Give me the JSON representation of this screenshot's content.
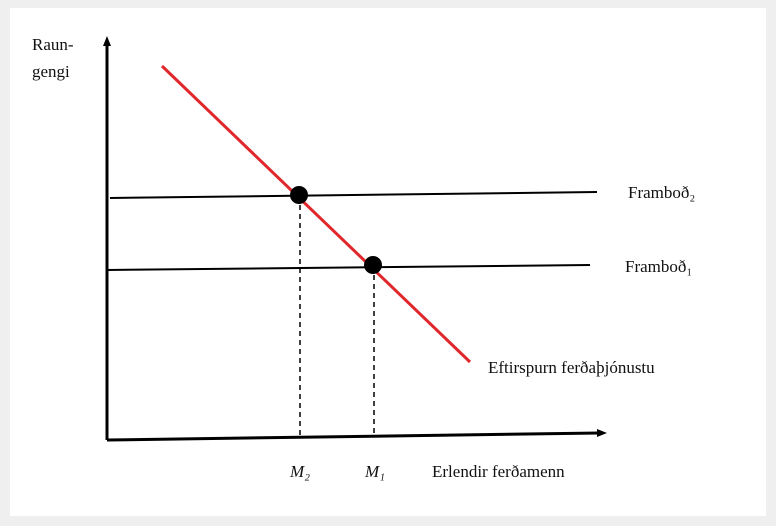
{
  "y_axis_label": [
    "Raun-",
    "gengi"
  ],
  "x_axis_label": "Erlendir ferðamenn",
  "lines": [
    {
      "label": "Framboð₂"
    },
    {
      "label": "Framboð₁"
    },
    {
      "label": "Eftirspurn ferðaþjónustu"
    }
  ],
  "equilibria": [
    {
      "label": "M₂"
    },
    {
      "label": "M₁"
    }
  ]
}
